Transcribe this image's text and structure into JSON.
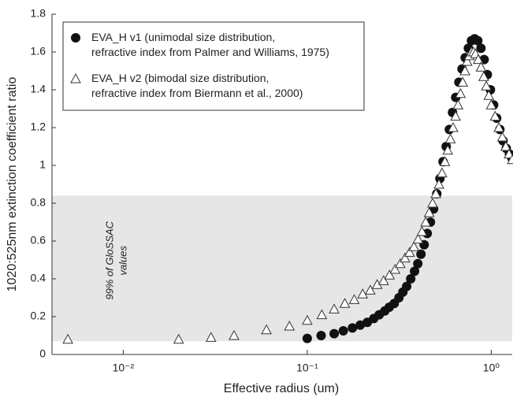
{
  "chart_data": {
    "type": "scatter",
    "xlabel": "Effective radius (um)",
    "ylabel": "1020:525nm extinction coefficient ratio",
    "xscale": "log",
    "xlim": [
      0.0041,
      1.3
    ],
    "ylim": [
      0,
      1.8
    ],
    "xticks": [
      {
        "value": 0.01,
        "label": "10⁻²"
      },
      {
        "value": 0.1,
        "label": "10⁻¹"
      },
      {
        "value": 1,
        "label": "10⁰"
      }
    ],
    "yticks": [
      0,
      0.2,
      0.4,
      0.6,
      0.8,
      1,
      1.2,
      1.4,
      1.6,
      1.8
    ],
    "band": {
      "ylim": [
        0.07,
        0.84
      ],
      "color": "#e6e6e6",
      "label": [
        "99% of GloSSAC",
        "values"
      ]
    },
    "legend": "upper left",
    "series": [
      {
        "name": "EVA_H v1 (unimodal size distribution,\nrefractive index from Palmer and Williams, 1975)",
        "marker": "circle",
        "color": "#111111",
        "x": [
          0.1,
          0.119,
          0.14,
          0.157,
          0.176,
          0.194,
          0.212,
          0.23,
          0.246,
          0.264,
          0.279,
          0.297,
          0.315,
          0.331,
          0.347,
          0.365,
          0.383,
          0.399,
          0.415,
          0.432,
          0.449,
          0.467,
          0.486,
          0.506,
          0.526,
          0.547,
          0.569,
          0.592,
          0.616,
          0.641,
          0.667,
          0.694,
          0.722,
          0.751,
          0.781,
          0.812,
          0.845,
          0.879,
          0.915,
          0.952,
          0.99,
          1.03,
          1.071,
          1.114,
          1.159,
          1.207,
          1.256,
          1.293
        ],
        "values": [
          0.085,
          0.1,
          0.11,
          0.125,
          0.14,
          0.155,
          0.17,
          0.19,
          0.21,
          0.23,
          0.25,
          0.27,
          0.3,
          0.33,
          0.36,
          0.4,
          0.44,
          0.48,
          0.53,
          0.58,
          0.64,
          0.7,
          0.77,
          0.85,
          0.93,
          1.02,
          1.1,
          1.19,
          1.28,
          1.36,
          1.44,
          1.51,
          1.57,
          1.62,
          1.66,
          1.67,
          1.66,
          1.62,
          1.56,
          1.48,
          1.4,
          1.32,
          1.25,
          1.19,
          1.13,
          1.09,
          1.06,
          1.04
        ]
      },
      {
        "name": "EVA_H v2 (bimodal size distribution,\nrefractive index from Biermann et al., 2000)",
        "marker": "triangle",
        "color": "#333333",
        "x": [
          0.005,
          0.02,
          0.03,
          0.04,
          0.06,
          0.08,
          0.1,
          0.12,
          0.14,
          0.16,
          0.18,
          0.2,
          0.22,
          0.24,
          0.26,
          0.28,
          0.3,
          0.32,
          0.34,
          0.36,
          0.38,
          0.4,
          0.42,
          0.44,
          0.46,
          0.48,
          0.5,
          0.52,
          0.54,
          0.56,
          0.58,
          0.6,
          0.62,
          0.64,
          0.66,
          0.68,
          0.7,
          0.72,
          0.74,
          0.76,
          0.78,
          0.8,
          0.82,
          0.85,
          0.88,
          0.91,
          0.94,
          0.97,
          1.0,
          1.05,
          1.1,
          1.15,
          1.2,
          1.25,
          1.3
        ],
        "values": [
          0.08,
          0.08,
          0.09,
          0.1,
          0.13,
          0.15,
          0.18,
          0.21,
          0.24,
          0.27,
          0.29,
          0.32,
          0.34,
          0.37,
          0.39,
          0.42,
          0.45,
          0.48,
          0.51,
          0.54,
          0.57,
          0.61,
          0.65,
          0.7,
          0.75,
          0.8,
          0.85,
          0.9,
          0.96,
          1.02,
          1.08,
          1.14,
          1.2,
          1.26,
          1.32,
          1.38,
          1.44,
          1.5,
          1.55,
          1.58,
          1.6,
          1.6,
          1.59,
          1.56,
          1.52,
          1.47,
          1.42,
          1.37,
          1.32,
          1.26,
          1.2,
          1.15,
          1.1,
          1.06,
          1.03
        ]
      }
    ]
  }
}
